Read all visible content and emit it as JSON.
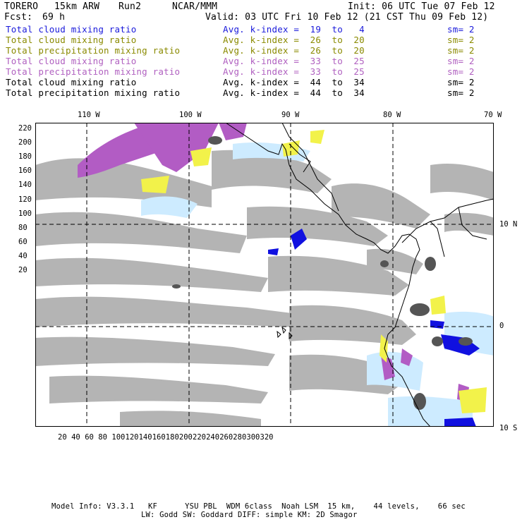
{
  "header": {
    "model": "TORERO",
    "resolution": "15km ARW",
    "run": "Run2",
    "org": "NCAR/MMM",
    "init": "Init: 06 UTC Tue 07 Feb 12",
    "fcst_label": "Fcst:",
    "fcst_value": "69 h",
    "valid": "Valid: 03 UTC Fri 10 Feb 12 (21 CST Thu 09 Feb 12)"
  },
  "legend": [
    {
      "field": "Total cloud mixing ratio",
      "kindex": "Avg. k-index =  19  to   4",
      "sm": "sm= 2",
      "color": "#1a1adb"
    },
    {
      "field": "Total cloud mixing ratio",
      "kindex": "Avg. k-index =  26  to  20",
      "sm": "sm= 2",
      "color": "#8a8a00"
    },
    {
      "field": "Total precipitation mixing ratio",
      "kindex": "Avg. k-index =  26  to  20",
      "sm": "sm= 2",
      "color": "#8a8a00"
    },
    {
      "field": "Total cloud mixing ratio",
      "kindex": "Avg. k-index =  33  to  25",
      "sm": "sm= 2",
      "color": "#b060c0"
    },
    {
      "field": "Total precipitation mixing ratio",
      "kindex": "Avg. k-index =  33  to  25",
      "sm": "sm= 2",
      "color": "#b060c0"
    },
    {
      "field": "Total cloud mixing ratio",
      "kindex": "Avg. k-index =  44  to  34",
      "sm": "sm= 2",
      "color": "#000000"
    },
    {
      "field": "Total precipitation mixing ratio",
      "kindex": "Avg. k-index =  44  to  34",
      "sm": "sm= 2",
      "color": "#000000"
    }
  ],
  "axes": {
    "top_lon": [
      "110 W",
      "100 W",
      "90 W",
      "80 W",
      "70 W"
    ],
    "right_lat": [
      "10 N",
      "0",
      "10 S"
    ],
    "left_y": [
      "220",
      "200",
      "180",
      "160",
      "140",
      "120",
      "100",
      "80",
      "60",
      "40",
      "20"
    ],
    "bottom_x": [
      "20",
      "40",
      "60",
      "80",
      "100",
      "120",
      "140",
      "160",
      "180",
      "200",
      "220",
      "240",
      "260",
      "280",
      "300",
      "320"
    ]
  },
  "footer": {
    "line1": "Model Info: V3.3.1   KF      YSU PBL  WDM 6class  Noah LSM  15 km,    44 levels,    66 sec",
    "line2": "LW: Godd SW: Goddard DIFF: simple KM: 2D Smagor"
  },
  "colors": {
    "gray": "#b4b4b4",
    "dark_gray": "#555555",
    "purple": "#b25cc4",
    "yellow": "#f2f24a",
    "light_blue": "#cdebff",
    "blue": "#1010e0"
  }
}
